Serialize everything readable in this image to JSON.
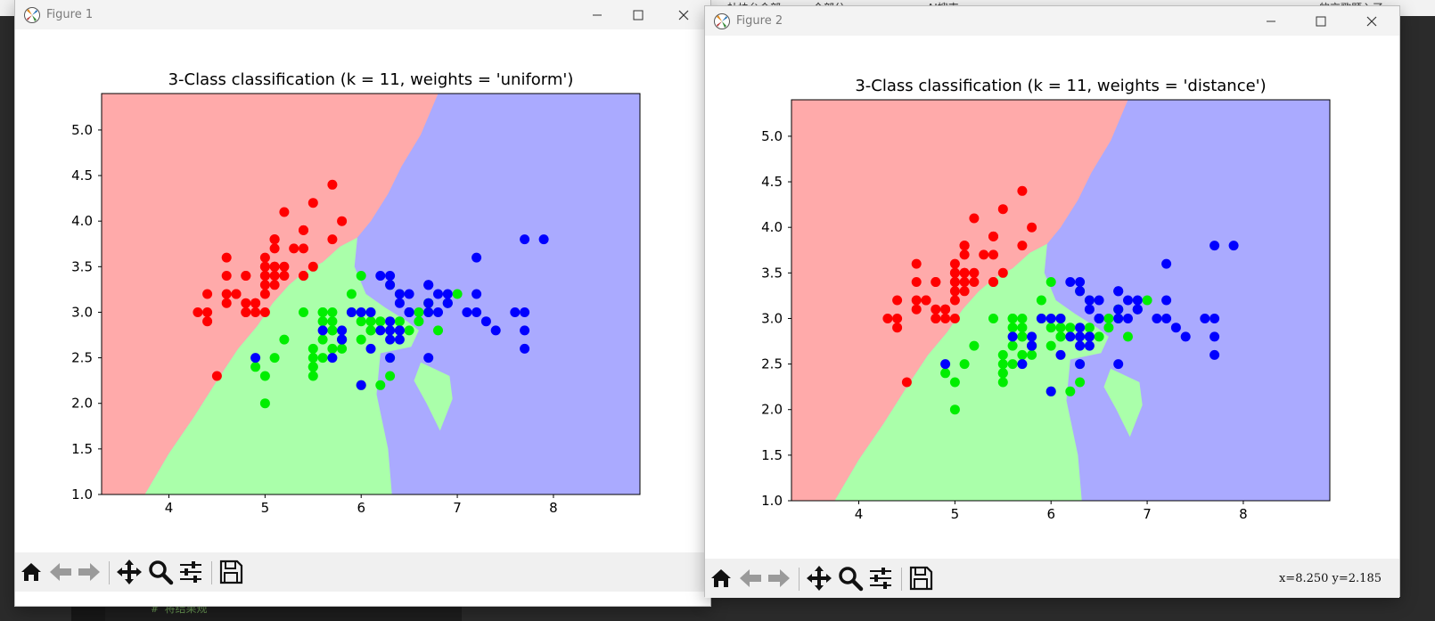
{
  "background": {
    "top_fragments": [
      "杜块台令部",
      "全部分",
      "AI搜索",
      "的交歌题入了"
    ],
    "code_comment": "# 将结果规"
  },
  "windows": [
    {
      "title": "Figure 1",
      "chart_data": {
        "type": "scatter",
        "title": "3-Class classification (k = 11, weights = 'uniform')",
        "xlabel": "",
        "ylabel": "",
        "xlim": [
          3.3,
          8.9
        ],
        "ylim": [
          1.0,
          5.4
        ],
        "xticks": [
          "4",
          "5",
          "6",
          "7",
          "8"
        ],
        "yticks": [
          "1.0",
          "1.5",
          "2.0",
          "2.5",
          "3.0",
          "3.5",
          "4.0",
          "4.5",
          "5.0"
        ],
        "grid": false,
        "region_colors": {
          "class0": "#ffaaaa",
          "class1": "#aaffaa",
          "class2": "#aaaaff"
        },
        "series": [
          {
            "color": "#ff0000",
            "points": [
              [
                5.1,
                3.5
              ],
              [
                4.9,
                3.0
              ],
              [
                4.7,
                3.2
              ],
              [
                4.6,
                3.1
              ],
              [
                5.0,
                3.6
              ],
              [
                5.4,
                3.9
              ],
              [
                4.6,
                3.4
              ],
              [
                5.0,
                3.4
              ],
              [
                4.4,
                2.9
              ],
              [
                4.9,
                3.1
              ],
              [
                5.4,
                3.7
              ],
              [
                4.8,
                3.4
              ],
              [
                4.8,
                3.0
              ],
              [
                4.3,
                3.0
              ],
              [
                5.8,
                4.0
              ],
              [
                5.7,
                4.4
              ],
              [
                5.4,
                3.9
              ],
              [
                5.1,
                3.5
              ],
              [
                5.7,
                3.8
              ],
              [
                5.1,
                3.8
              ],
              [
                5.4,
                3.4
              ],
              [
                5.1,
                3.7
              ],
              [
                4.6,
                3.6
              ],
              [
                5.1,
                3.3
              ],
              [
                4.8,
                3.4
              ],
              [
                5.0,
                3.0
              ],
              [
                5.0,
                3.4
              ],
              [
                5.2,
                3.5
              ],
              [
                5.2,
                3.4
              ],
              [
                4.7,
                3.2
              ],
              [
                4.8,
                3.1
              ],
              [
                5.4,
                3.4
              ],
              [
                5.2,
                4.1
              ],
              [
                5.5,
                4.2
              ],
              [
                4.9,
                3.1
              ],
              [
                5.0,
                3.2
              ],
              [
                5.5,
                3.5
              ],
              [
                4.4,
                3.0
              ],
              [
                5.1,
                3.4
              ],
              [
                5.0,
                3.5
              ],
              [
                4.5,
                2.3
              ],
              [
                4.4,
                3.2
              ],
              [
                5.0,
                3.5
              ],
              [
                5.1,
                3.8
              ],
              [
                4.8,
                3.0
              ],
              [
                5.1,
                3.8
              ],
              [
                4.6,
                3.2
              ],
              [
                5.3,
                3.7
              ],
              [
                5.0,
                3.3
              ]
            ]
          },
          {
            "color": "#00ee00",
            "points": [
              [
                7.0,
                3.2
              ],
              [
                6.4,
                3.2
              ],
              [
                6.9,
                3.1
              ],
              [
                5.5,
                2.3
              ],
              [
                6.5,
                2.8
              ],
              [
                5.7,
                2.8
              ],
              [
                6.3,
                3.3
              ],
              [
                4.9,
                2.4
              ],
              [
                6.6,
                2.9
              ],
              [
                5.2,
                2.7
              ],
              [
                5.0,
                2.0
              ],
              [
                5.9,
                3.0
              ],
              [
                6.0,
                2.2
              ],
              [
                6.1,
                2.9
              ],
              [
                5.6,
                2.9
              ],
              [
                6.7,
                3.1
              ],
              [
                5.6,
                3.0
              ],
              [
                5.8,
                2.7
              ],
              [
                6.2,
                2.2
              ],
              [
                5.6,
                2.5
              ],
              [
                5.9,
                3.2
              ],
              [
                6.1,
                2.8
              ],
              [
                6.3,
                2.5
              ],
              [
                6.1,
                2.8
              ],
              [
                6.4,
                2.9
              ],
              [
                6.6,
                3.0
              ],
              [
                6.8,
                2.8
              ],
              [
                6.7,
                3.0
              ],
              [
                6.0,
                2.9
              ],
              [
                5.7,
                2.6
              ],
              [
                5.5,
                2.4
              ],
              [
                5.5,
                2.4
              ],
              [
                5.8,
                2.7
              ],
              [
                6.0,
                2.7
              ],
              [
                5.4,
                3.0
              ],
              [
                6.0,
                3.4
              ],
              [
                6.7,
                3.1
              ],
              [
                6.3,
                2.3
              ],
              [
                5.6,
                3.0
              ],
              [
                5.5,
                2.5
              ],
              [
                5.5,
                2.6
              ],
              [
                6.1,
                3.0
              ],
              [
                5.8,
                2.6
              ],
              [
                5.0,
                2.3
              ],
              [
                5.6,
                2.7
              ],
              [
                5.7,
                3.0
              ],
              [
                5.7,
                2.9
              ],
              [
                6.2,
                2.9
              ],
              [
                5.1,
                2.5
              ],
              [
                5.7,
                2.8
              ]
            ]
          },
          {
            "color": "#0000ff",
            "points": [
              [
                6.3,
                3.3
              ],
              [
                5.8,
                2.7
              ],
              [
                7.1,
                3.0
              ],
              [
                6.3,
                2.9
              ],
              [
                6.5,
                3.0
              ],
              [
                7.6,
                3.0
              ],
              [
                4.9,
                2.5
              ],
              [
                7.3,
                2.9
              ],
              [
                6.7,
                2.5
              ],
              [
                7.2,
                3.6
              ],
              [
                6.5,
                3.2
              ],
              [
                6.4,
                2.7
              ],
              [
                6.8,
                3.0
              ],
              [
                5.7,
                2.5
              ],
              [
                5.8,
                2.8
              ],
              [
                6.4,
                3.2
              ],
              [
                6.5,
                3.0
              ],
              [
                7.7,
                3.8
              ],
              [
                7.7,
                2.6
              ],
              [
                6.0,
                2.2
              ],
              [
                6.9,
                3.2
              ],
              [
                5.6,
                2.8
              ],
              [
                7.7,
                2.8
              ],
              [
                6.3,
                2.7
              ],
              [
                6.7,
                3.3
              ],
              [
                7.2,
                3.2
              ],
              [
                6.2,
                2.8
              ],
              [
                6.1,
                3.0
              ],
              [
                6.4,
                2.8
              ],
              [
                7.2,
                3.0
              ],
              [
                7.4,
                2.8
              ],
              [
                7.9,
                3.8
              ],
              [
                6.4,
                2.8
              ],
              [
                6.3,
                2.8
              ],
              [
                6.1,
                2.6
              ],
              [
                7.7,
                3.0
              ],
              [
                6.3,
                3.4
              ],
              [
                6.4,
                3.1
              ],
              [
                6.0,
                3.0
              ],
              [
                6.9,
                3.1
              ],
              [
                6.7,
                3.1
              ],
              [
                6.9,
                3.1
              ],
              [
                5.8,
                2.7
              ],
              [
                6.8,
                3.2
              ],
              [
                6.7,
                3.3
              ],
              [
                6.7,
                3.0
              ],
              [
                6.3,
                2.5
              ],
              [
                6.5,
                3.0
              ],
              [
                6.2,
                3.4
              ],
              [
                5.9,
                3.0
              ]
            ]
          }
        ]
      },
      "toolbar": {
        "icons": [
          "home-icon",
          "back-icon",
          "forward-icon",
          "pan-icon",
          "zoom-icon",
          "configure-icon",
          "save-icon"
        ]
      }
    },
    {
      "title": "Figure 2",
      "chart_data": {
        "type": "scatter",
        "title": "3-Class classification (k = 11, weights = 'distance')",
        "xlabel": "",
        "ylabel": "",
        "xlim": [
          3.3,
          8.9
        ],
        "ylim": [
          1.0,
          5.4
        ],
        "xticks": [
          "4",
          "5",
          "6",
          "7",
          "8"
        ],
        "yticks": [
          "1.0",
          "1.5",
          "2.0",
          "2.5",
          "3.0",
          "3.5",
          "4.0",
          "4.5",
          "5.0"
        ],
        "grid": false,
        "region_colors": {
          "class0": "#ffaaaa",
          "class1": "#aaffaa",
          "class2": "#aaaaff"
        },
        "same_points_as_figure": 1
      },
      "toolbar": {
        "icons": [
          "home-icon",
          "back-icon",
          "forward-icon",
          "pan-icon",
          "zoom-icon",
          "configure-icon",
          "save-icon"
        ]
      },
      "coords": "x=8.250 y=2.185"
    }
  ]
}
